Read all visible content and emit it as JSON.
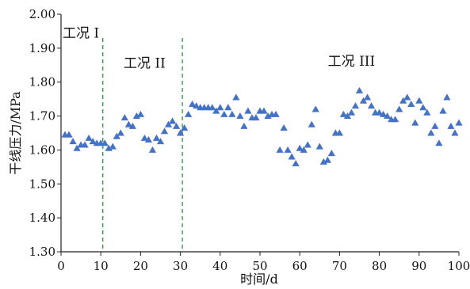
{
  "chart_data": {
    "type": "scatter",
    "xlabel": "时间/d",
    "ylabel": "干线压力/MPa",
    "xlim": [
      0,
      100
    ],
    "ylim": [
      1.3,
      2.0
    ],
    "x_ticks": [
      "0",
      "10",
      "20",
      "30",
      "40",
      "50",
      "60",
      "70",
      "80",
      "90",
      "100"
    ],
    "y_ticks": [
      "1.30",
      "1.40",
      "1.50",
      "1.60",
      "1.70",
      "1.80",
      "1.90",
      "2.00"
    ],
    "grid": false,
    "marker": "triangle",
    "marker_color": "#4472c4",
    "divider_color": "#2ea84a",
    "dividers": [
      10.5,
      30.5
    ],
    "phase_labels": [
      {
        "text": "工况 I",
        "x": 5,
        "y": 1.945
      },
      {
        "text": "工况 II",
        "x": 21,
        "y": 1.857
      },
      {
        "text": "工况 III",
        "x": 73,
        "y": 1.862
      }
    ],
    "series": [
      {
        "x": [
          1,
          2,
          3,
          4,
          5,
          6,
          7,
          8,
          9,
          10,
          11,
          12,
          13,
          14,
          15,
          16,
          17,
          18,
          19,
          20,
          21,
          22,
          23,
          24,
          25,
          26,
          27,
          28,
          29,
          30,
          31,
          32,
          33,
          34,
          35,
          36,
          37,
          38,
          39,
          40,
          41,
          42,
          43,
          44,
          45,
          46,
          47,
          48,
          49,
          50,
          51,
          52,
          53,
          54,
          55,
          56,
          57,
          58,
          59,
          60,
          61,
          62,
          63,
          64,
          65,
          66,
          67,
          68,
          69,
          70,
          71,
          72,
          73,
          74,
          75,
          76,
          77,
          78,
          79,
          80,
          81,
          82,
          83,
          84,
          85,
          86,
          87,
          88,
          89,
          90,
          91,
          92,
          93,
          94,
          95,
          96,
          97,
          98,
          99,
          100
        ],
        "values": [
          1.645,
          1.645,
          1.625,
          1.605,
          1.615,
          1.615,
          1.635,
          1.625,
          1.62,
          1.62,
          1.62,
          1.605,
          1.61,
          1.64,
          1.65,
          1.695,
          1.675,
          1.67,
          1.7,
          1.705,
          1.635,
          1.63,
          1.6,
          1.635,
          1.625,
          1.655,
          1.675,
          1.685,
          1.67,
          1.65,
          1.665,
          1.705,
          1.735,
          1.73,
          1.725,
          1.725,
          1.725,
          1.725,
          1.715,
          1.725,
          1.705,
          1.725,
          1.705,
          1.755,
          1.7,
          1.67,
          1.715,
          1.695,
          1.695,
          1.715,
          1.715,
          1.7,
          1.705,
          1.705,
          1.6,
          1.665,
          1.6,
          1.58,
          1.56,
          1.605,
          1.6,
          1.615,
          1.675,
          1.72,
          1.61,
          1.565,
          1.57,
          1.59,
          1.65,
          1.65,
          1.705,
          1.7,
          1.71,
          1.73,
          1.775,
          1.745,
          1.755,
          1.73,
          1.71,
          1.71,
          1.705,
          1.7,
          1.69,
          1.69,
          1.72,
          1.745,
          1.755,
          1.735,
          1.68,
          1.745,
          1.725,
          1.71,
          1.65,
          1.67,
          1.62,
          1.715,
          1.755,
          1.67,
          1.65,
          1.68
        ]
      }
    ]
  }
}
